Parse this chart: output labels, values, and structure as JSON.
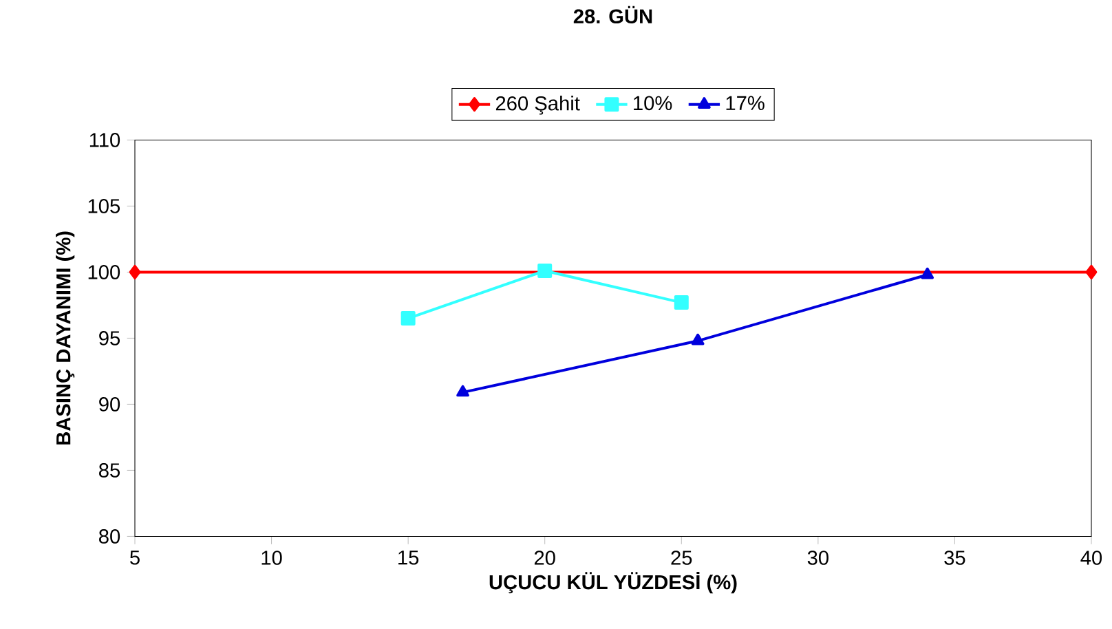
{
  "chart_data": {
    "type": "line",
    "title": "28. GÜN",
    "xlabel": "UÇUCU KÜL YÜZDESİ (%)",
    "ylabel": "BASINÇ DAYANIMI (%)",
    "xlim": [
      5,
      40
    ],
    "xticks": [
      5,
      10,
      15,
      20,
      25,
      30,
      35,
      40
    ],
    "ylim": [
      80,
      110
    ],
    "yticks": [
      80,
      85,
      90,
      95,
      100,
      105,
      110
    ],
    "grid": false,
    "legend": "top",
    "series": [
      {
        "name": "260 Şahit",
        "color": "#ff0000",
        "marker": "diamond",
        "x": [
          5,
          40
        ],
        "values": [
          100,
          100
        ]
      },
      {
        "name": "10%",
        "color": "#33ffff",
        "marker": "square",
        "x": [
          15,
          20,
          25
        ],
        "values": [
          96.5,
          100.1,
          97.7
        ]
      },
      {
        "name": "17%",
        "color": "#0000dd",
        "marker": "triangle",
        "x": [
          17,
          25.6,
          34
        ],
        "values": [
          90.9,
          94.8,
          99.8
        ]
      }
    ]
  }
}
